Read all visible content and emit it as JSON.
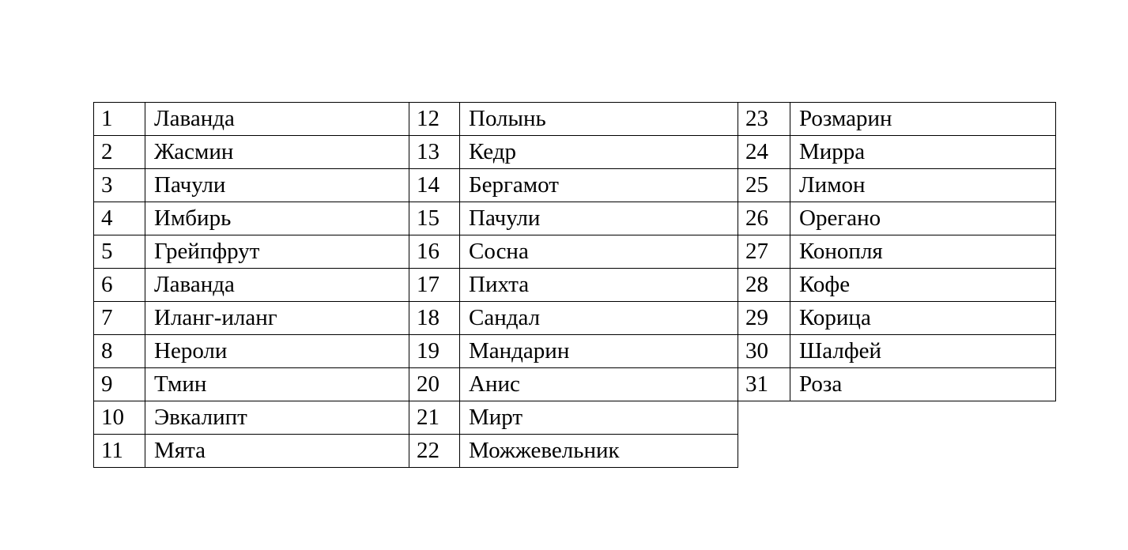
{
  "page": {
    "background_color": "#ffffff",
    "text_color": "#000000",
    "border_color": "#000000"
  },
  "table": {
    "groups": [
      {
        "entries": [
          {
            "num": "1",
            "name": "Лаванда"
          },
          {
            "num": "2",
            "name": "Жасмин"
          },
          {
            "num": "3",
            "name": "Пачули"
          },
          {
            "num": "4",
            "name": "Имбирь"
          },
          {
            "num": "5",
            "name": "Грейпфрут"
          },
          {
            "num": "6",
            "name": "Лаванда"
          },
          {
            "num": "7",
            "name": "Иланг-иланг"
          },
          {
            "num": "8",
            "name": "Нероли"
          },
          {
            "num": "9",
            "name": "Тмин"
          },
          {
            "num": "10",
            "name": "Эвкалипт"
          },
          {
            "num": "11",
            "name": "Мята"
          }
        ]
      },
      {
        "entries": [
          {
            "num": "12",
            "name": "Полынь"
          },
          {
            "num": "13",
            "name": "Кедр"
          },
          {
            "num": "14",
            "name": "Бергамот"
          },
          {
            "num": "15",
            "name": "Пачули"
          },
          {
            "num": "16",
            "name": "Сосна"
          },
          {
            "num": "17",
            "name": "Пихта"
          },
          {
            "num": "18",
            "name": "Сандал"
          },
          {
            "num": "19",
            "name": "Мандарин"
          },
          {
            "num": "20",
            "name": "Анис"
          },
          {
            "num": "21",
            "name": "Мирт"
          },
          {
            "num": "22",
            "name": "Можжевельник"
          }
        ]
      },
      {
        "entries": [
          {
            "num": "23",
            "name": "Розмарин"
          },
          {
            "num": "24",
            "name": "Мирра"
          },
          {
            "num": "25",
            "name": "Лимон"
          },
          {
            "num": "26",
            "name": "Орегано"
          },
          {
            "num": "27",
            "name": "Конопля"
          },
          {
            "num": "28",
            "name": "Кофе"
          },
          {
            "num": "29",
            "name": "Корица"
          },
          {
            "num": "30",
            "name": "Шалфей"
          },
          {
            "num": "31",
            "name": "Роза"
          }
        ]
      }
    ]
  }
}
